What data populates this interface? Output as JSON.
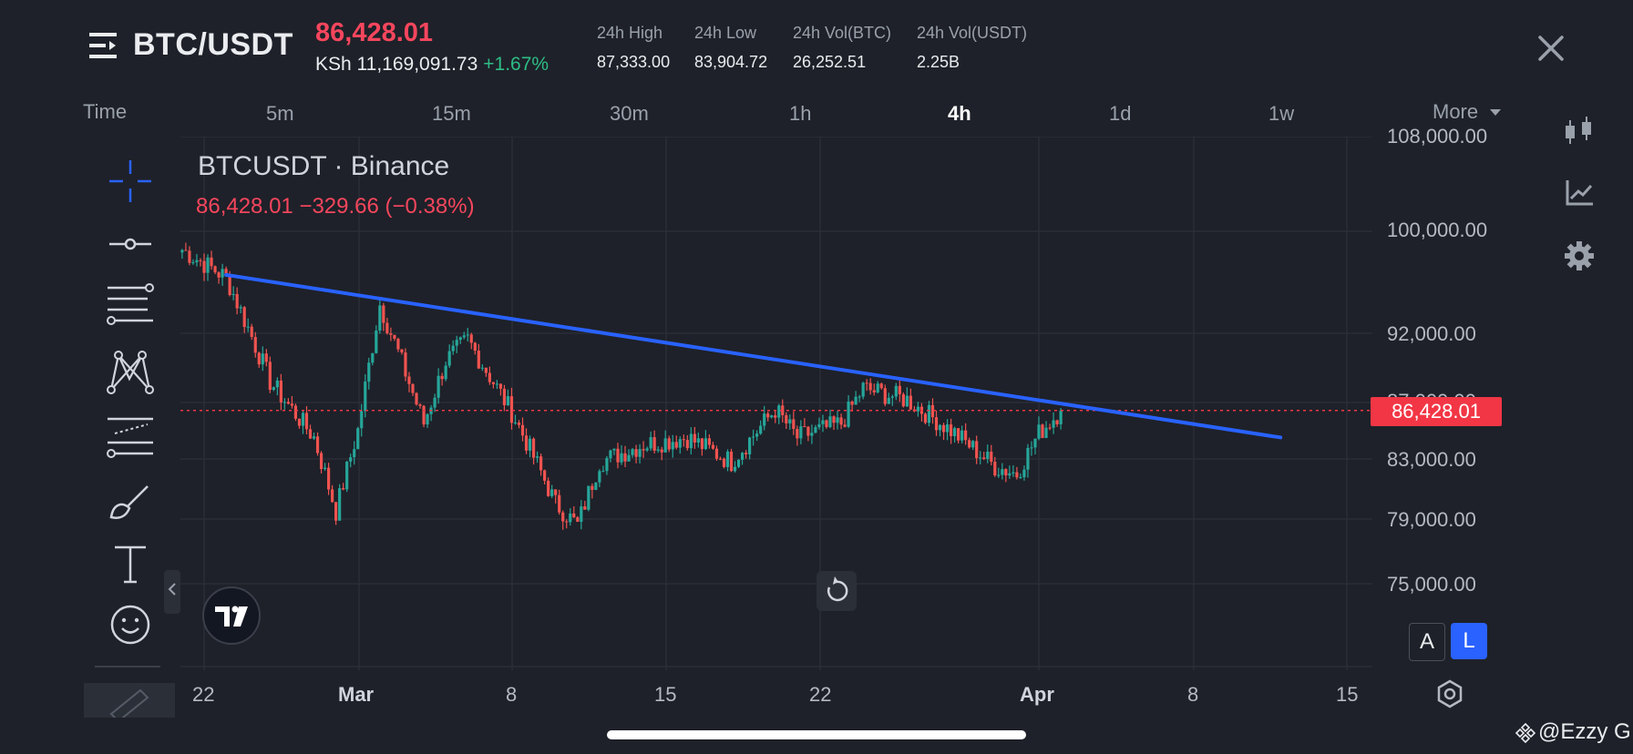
{
  "header": {
    "pair": "BTC/USDT",
    "price": "86,428.01",
    "fiat_price": "KSh 11,169,091.73",
    "change_pct": "+1.67%",
    "stats": [
      {
        "label": "24h High",
        "value": "87,333.00"
      },
      {
        "label": "24h Low",
        "value": "83,904.72"
      },
      {
        "label": "24h Vol(BTC)",
        "value": "26,252.51"
      },
      {
        "label": "24h Vol(USDT)",
        "value": "2.25B"
      }
    ]
  },
  "intervals": {
    "time_label": "Time",
    "items": [
      "5m",
      "15m",
      "30m",
      "1h",
      "4h",
      "1d",
      "1w"
    ],
    "active": "4h",
    "more_label": "More"
  },
  "chart": {
    "title": "BTCUSDT · Binance",
    "ohlc_text": "86,428.01  −329.66 (−0.38%)",
    "y_labels": [
      "108,000.00",
      "100,000.00",
      "92,000.00",
      "87,000.00",
      "83,000.00",
      "79,000.00",
      "75,000.00"
    ],
    "x_labels": [
      "22",
      "Mar",
      "8",
      "15",
      "22",
      "Apr",
      "8",
      "15"
    ],
    "last_price_tag": "86,428.01",
    "scale_buttons": {
      "a": "A",
      "l": "L"
    }
  },
  "chart_data": {
    "type": "candlestick",
    "symbol": "BTCUSDT",
    "exchange": "Binance",
    "interval": "4h",
    "x_ticks": [
      "22",
      "Mar",
      "8",
      "15",
      "22",
      "Apr",
      "8",
      "15"
    ],
    "y_ticks": [
      75000,
      79000,
      83000,
      87000,
      92000,
      100000,
      108000
    ],
    "y_scale": "log",
    "last_price": 86428.01,
    "key_points_close": [
      {
        "x": "Feb 21",
        "y": 98500
      },
      {
        "x": "Feb 23",
        "y": 96300
      },
      {
        "x": "Feb 25",
        "y": 88500
      },
      {
        "x": "Feb 27",
        "y": 84500
      },
      {
        "x": "Feb 28",
        "y": 79500
      },
      {
        "x": "Mar 1",
        "y": 85000
      },
      {
        "x": "Mar 2",
        "y": 94200
      },
      {
        "x": "Mar 4",
        "y": 85500
      },
      {
        "x": "Mar 5",
        "y": 90000
      },
      {
        "x": "Mar 6",
        "y": 91500
      },
      {
        "x": "Mar 8",
        "y": 86300
      },
      {
        "x": "Mar 10",
        "y": 80000
      },
      {
        "x": "Mar 11",
        "y": 78600
      },
      {
        "x": "Mar 12",
        "y": 82800
      },
      {
        "x": "Mar 14",
        "y": 84000
      },
      {
        "x": "Mar 16",
        "y": 84500
      },
      {
        "x": "Mar 18",
        "y": 82800
      },
      {
        "x": "Mar 20",
        "y": 86500
      },
      {
        "x": "Mar 21",
        "y": 84500
      },
      {
        "x": "Mar 23",
        "y": 85500
      },
      {
        "x": "Mar 24",
        "y": 88000
      },
      {
        "x": "Mar 26",
        "y": 87200
      },
      {
        "x": "Mar 28",
        "y": 85000
      },
      {
        "x": "Mar 30",
        "y": 82500
      },
      {
        "x": "Mar 31",
        "y": 82000
      },
      {
        "x": "Apr 1",
        "y": 84800
      },
      {
        "x": "Apr 2",
        "y": 86428
      }
    ],
    "trendline": {
      "from": {
        "x": "Feb 23",
        "y": 96500
      },
      "to": {
        "x": "Apr 12",
        "y": 84500
      }
    },
    "colors": {
      "up": "#26a69a",
      "down": "#ef5350",
      "trendline": "#2962ff",
      "price_line": "#f23645"
    }
  },
  "watermark": "@Ezzy G",
  "tools": [
    "crosshair-icon",
    "horizontal-line-icon",
    "parallel-channel-icon",
    "pattern-icon",
    "fib-retracement-icon",
    "brush-icon",
    "text-icon",
    "emoji-icon"
  ]
}
